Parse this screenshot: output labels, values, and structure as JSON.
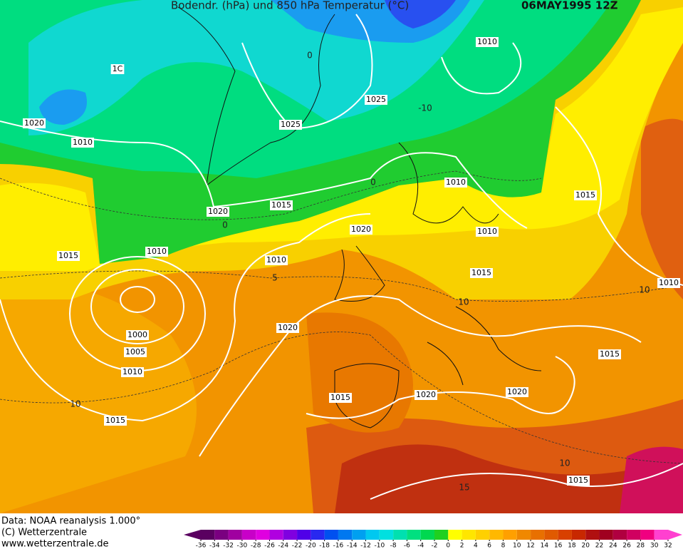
{
  "header": {
    "title": "Bodendr. (hPa) und 850 hPa Temperatur (°C)",
    "date": "06MAY1995 12Z"
  },
  "footer": {
    "lines": [
      "Data: NOAA reanalysis 1.000°",
      "(C) Wetterzentrale",
      "www.wetterzentrale.de"
    ]
  },
  "colorbar": {
    "ticks": [
      -36,
      -34,
      -32,
      -30,
      -28,
      -26,
      -24,
      -22,
      -20,
      -18,
      -16,
      -14,
      -12,
      -10,
      -8,
      -6,
      -4,
      -2,
      0,
      2,
      4,
      6,
      8,
      10,
      12,
      14,
      16,
      18,
      20,
      22,
      24,
      26,
      28,
      30,
      32
    ],
    "colors": [
      "#5a0060",
      "#7a0080",
      "#a000a0",
      "#c800c8",
      "#e000e0",
      "#b000e0",
      "#8000e0",
      "#5000e8",
      "#2828f0",
      "#0050f0",
      "#0078f0",
      "#00a0f0",
      "#00c8f0",
      "#00e0e0",
      "#00e0b0",
      "#00e080",
      "#00d850",
      "#20d020",
      "#ffff00",
      "#ffe600",
      "#ffd000",
      "#ffb800",
      "#ffa000",
      "#f08800",
      "#e87000",
      "#e05a00",
      "#d84000",
      "#c82800",
      "#b01010",
      "#a00020",
      "#b00040",
      "#d00060",
      "#f00080",
      "#ff40d0"
    ]
  },
  "isobar_labels": [
    "1C",
    "1020",
    "1010",
    "1015",
    "1010",
    "1020",
    "1015",
    "1025",
    "1025",
    "1010",
    "1010",
    "1020",
    "1010",
    "1010",
    "1015",
    "1015",
    "1010",
    "1000",
    "1005",
    "1010",
    "1020",
    "1015",
    "1020",
    "1020",
    "1015",
    "1015",
    "1015"
  ],
  "isotherm_labels": [
    "0",
    "-10",
    "0",
    "0",
    "5",
    "10",
    "10",
    "10",
    "10",
    "15"
  ]
}
